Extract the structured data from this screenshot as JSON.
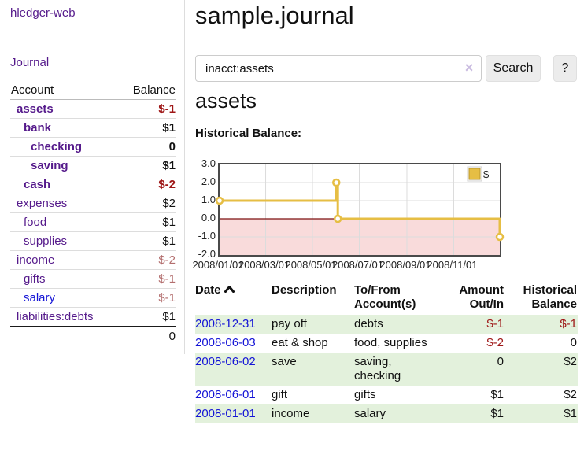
{
  "app": {
    "brand": "hledger-web"
  },
  "sidebar": {
    "nav_journal": "Journal",
    "table": {
      "headers": {
        "account": "Account",
        "balance": "Balance"
      },
      "rows": [
        {
          "account": "assets",
          "balance": "$-1",
          "level": 1,
          "bold": true,
          "balance_style": "neg-strong"
        },
        {
          "account": "bank",
          "balance": "$1",
          "level": 2,
          "bold": true,
          "balance_style": "pos"
        },
        {
          "account": "checking",
          "balance": "0",
          "level": 3,
          "bold": true,
          "balance_style": "pos"
        },
        {
          "account": "saving",
          "balance": "$1",
          "level": 3,
          "bold": true,
          "balance_style": "pos"
        },
        {
          "account": "cash",
          "balance": "$-2",
          "level": 2,
          "bold": true,
          "balance_style": "neg-strong"
        },
        {
          "account": "expenses",
          "balance": "$2",
          "level": 1,
          "bold": false,
          "balance_style": "pos"
        },
        {
          "account": "food",
          "balance": "$1",
          "level": 2,
          "bold": false,
          "balance_style": "pos"
        },
        {
          "account": "supplies",
          "balance": "$1",
          "level": 2,
          "bold": false,
          "balance_style": "pos"
        },
        {
          "account": "income",
          "balance": "$-2",
          "level": 1,
          "bold": false,
          "balance_style": "neg-muted"
        },
        {
          "account": "gifts",
          "balance": "$-1",
          "level": 2,
          "bold": false,
          "balance_style": "neg-muted"
        },
        {
          "account": "salary",
          "balance": "$-1",
          "level": 2,
          "bold": false,
          "balance_style": "neg-muted",
          "link_style": "blue"
        },
        {
          "account": "liabilities:debts",
          "balance": "$1",
          "level": 1,
          "bold": false,
          "balance_style": "pos"
        }
      ],
      "total": "0"
    }
  },
  "main": {
    "title": "sample.journal",
    "search": {
      "value": "inacct:assets",
      "clear_icon": "×",
      "button_label": "Search",
      "help_label": "?"
    },
    "account_heading": "assets",
    "chart_label": "Historical Balance:"
  },
  "chart_data": {
    "type": "line",
    "step": true,
    "title": "Historical Balance:",
    "series": [
      {
        "name": "$",
        "points": [
          {
            "date": "2008-01-01",
            "value": 1
          },
          {
            "date": "2008-06-01",
            "value": 2
          },
          {
            "date": "2008-06-02",
            "value": 2
          },
          {
            "date": "2008-06-03",
            "value": 0
          },
          {
            "date": "2008-12-31",
            "value": -1
          }
        ]
      }
    ],
    "x_range": [
      "2008-01-01",
      "2008-12-31"
    ],
    "ylim": [
      -2,
      3
    ],
    "ytick_labels": [
      "3.0",
      "2.0",
      "1.0",
      "0.0",
      "-1.0",
      "-2.0"
    ],
    "ytick_values": [
      3,
      2,
      1,
      0,
      -1,
      -2
    ],
    "xtick_labels": [
      "2008/01/01",
      "2008/03/01",
      "2008/05/01",
      "2008/07/01",
      "2008/09/01",
      "2008/11/01"
    ],
    "xtick_dates": [
      "2008-01-01",
      "2008-03-01",
      "2008-05-01",
      "2008-07-01",
      "2008-09-01",
      "2008-11-01"
    ],
    "legend": {
      "label": "$",
      "position": "top-right"
    },
    "grid": true
  },
  "register": {
    "headers": [
      {
        "label": "Date",
        "sortable": true,
        "align": "left"
      },
      {
        "label": "Description",
        "align": "left"
      },
      {
        "label": "To/From Account(s)",
        "align": "left"
      },
      {
        "label": "Amount Out/In",
        "align": "right"
      },
      {
        "label": "Historical Balance",
        "align": "right"
      }
    ],
    "rows": [
      {
        "date": "2008-12-31",
        "description": "pay off",
        "accounts": "debts",
        "amount": "$-1",
        "amount_neg": true,
        "balance": "$-1",
        "balance_neg": true
      },
      {
        "date": "2008-06-03",
        "description": "eat & shop",
        "accounts": "food, supplies",
        "amount": "$-2",
        "amount_neg": true,
        "balance": "0",
        "balance_neg": false
      },
      {
        "date": "2008-06-02",
        "description": "save",
        "accounts": "saving, checking",
        "amount": "0",
        "amount_neg": false,
        "balance": "$2",
        "balance_neg": false
      },
      {
        "date": "2008-06-01",
        "description": "gift",
        "accounts": "gifts",
        "amount": "$1",
        "amount_neg": false,
        "balance": "$2",
        "balance_neg": false
      },
      {
        "date": "2008-01-01",
        "description": "income",
        "accounts": "salary",
        "amount": "$1",
        "amount_neg": false,
        "balance": "$1",
        "balance_neg": false
      }
    ]
  },
  "icons": {
    "sort_ascending": "chevron-up",
    "clear_search": "x-mark"
  },
  "colors": {
    "link_purple": "#551a8b",
    "link_blue": "#1414d6",
    "negative_strong": "#9e1616",
    "negative_muted": "#b36e6e",
    "row_stripe_green": "#e3f1dc",
    "chart_line_gold": "#e6be44",
    "chart_negative_fill": "#f9dbdb",
    "chart_zero_line": "#7d1010",
    "chart_border": "#4a4a4a",
    "gridline": "#dcdcdc",
    "button_bg": "#ececec"
  }
}
